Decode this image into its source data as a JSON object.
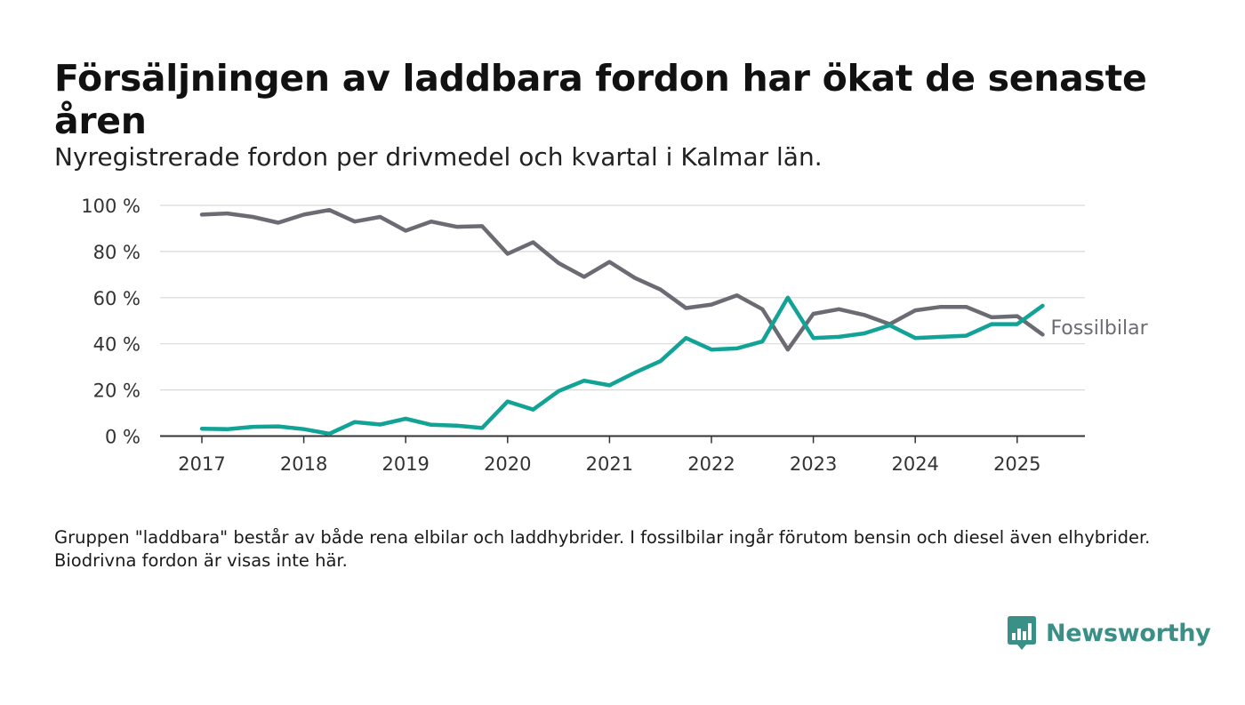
{
  "title": "Försäljningen av laddbara fordon har ökat de senaste åren",
  "subtitle": "Nyregistrerade fordon per drivmedel och kvartal i Kalmar län.",
  "footnote": "Gruppen \"laddbara\" består av både rena elbilar och laddhybrider. I fossilbilar ingår förutom bensin och diesel även elhybrider. Biodrivna fordon är visas inte här.",
  "brand": {
    "name": "Newsworthy",
    "color": "#3a8f87",
    "icon": "bar-chart-speech-icon"
  },
  "chart_data": {
    "type": "line",
    "x_unit": "quarter",
    "x": [
      "2017-Q1",
      "2017-Q2",
      "2017-Q3",
      "2017-Q4",
      "2018-Q1",
      "2018-Q2",
      "2018-Q3",
      "2018-Q4",
      "2019-Q1",
      "2019-Q2",
      "2019-Q3",
      "2019-Q4",
      "2020-Q1",
      "2020-Q2",
      "2020-Q3",
      "2020-Q4",
      "2021-Q1",
      "2021-Q2",
      "2021-Q3",
      "2021-Q4",
      "2022-Q1",
      "2022-Q2",
      "2022-Q3",
      "2022-Q4",
      "2023-Q1",
      "2023-Q2",
      "2023-Q3",
      "2023-Q4",
      "2024-Q1",
      "2024-Q2",
      "2024-Q3",
      "2024-Q4",
      "2025-Q1",
      "2025-Q2"
    ],
    "x_tick_labels": [
      "2017",
      "2018",
      "2019",
      "2020",
      "2021",
      "2022",
      "2023",
      "2024",
      "2025"
    ],
    "y_ticks": [
      0,
      20,
      40,
      60,
      80,
      100
    ],
    "y_tick_format": "{v} %",
    "ylim": [
      0,
      100
    ],
    "grid": "horizontal",
    "series": [
      {
        "name": "Fossilbilar",
        "color": "#6b6b73",
        "values": [
          96,
          96.5,
          95,
          92.5,
          96,
          98,
          93,
          95,
          89,
          93,
          90.7,
          91,
          79,
          84,
          75,
          69,
          75.5,
          68.5,
          63.5,
          55.5,
          57,
          61,
          55,
          37.5,
          53,
          55,
          52.5,
          48.5,
          54.5,
          56,
          56,
          51.5,
          52,
          44
        ]
      },
      {
        "color": "#12a396",
        "values": [
          3.2,
          3,
          4,
          4.2,
          3,
          1,
          6.1,
          5,
          7.5,
          4.9,
          4.5,
          3.5,
          15,
          11.5,
          19.5,
          24,
          22,
          27.5,
          32.5,
          42.5,
          37.5,
          38,
          41,
          60,
          42.5,
          43,
          44.5,
          48,
          42.5,
          43,
          43.5,
          48.5,
          48.5,
          56.5
        ]
      }
    ]
  }
}
